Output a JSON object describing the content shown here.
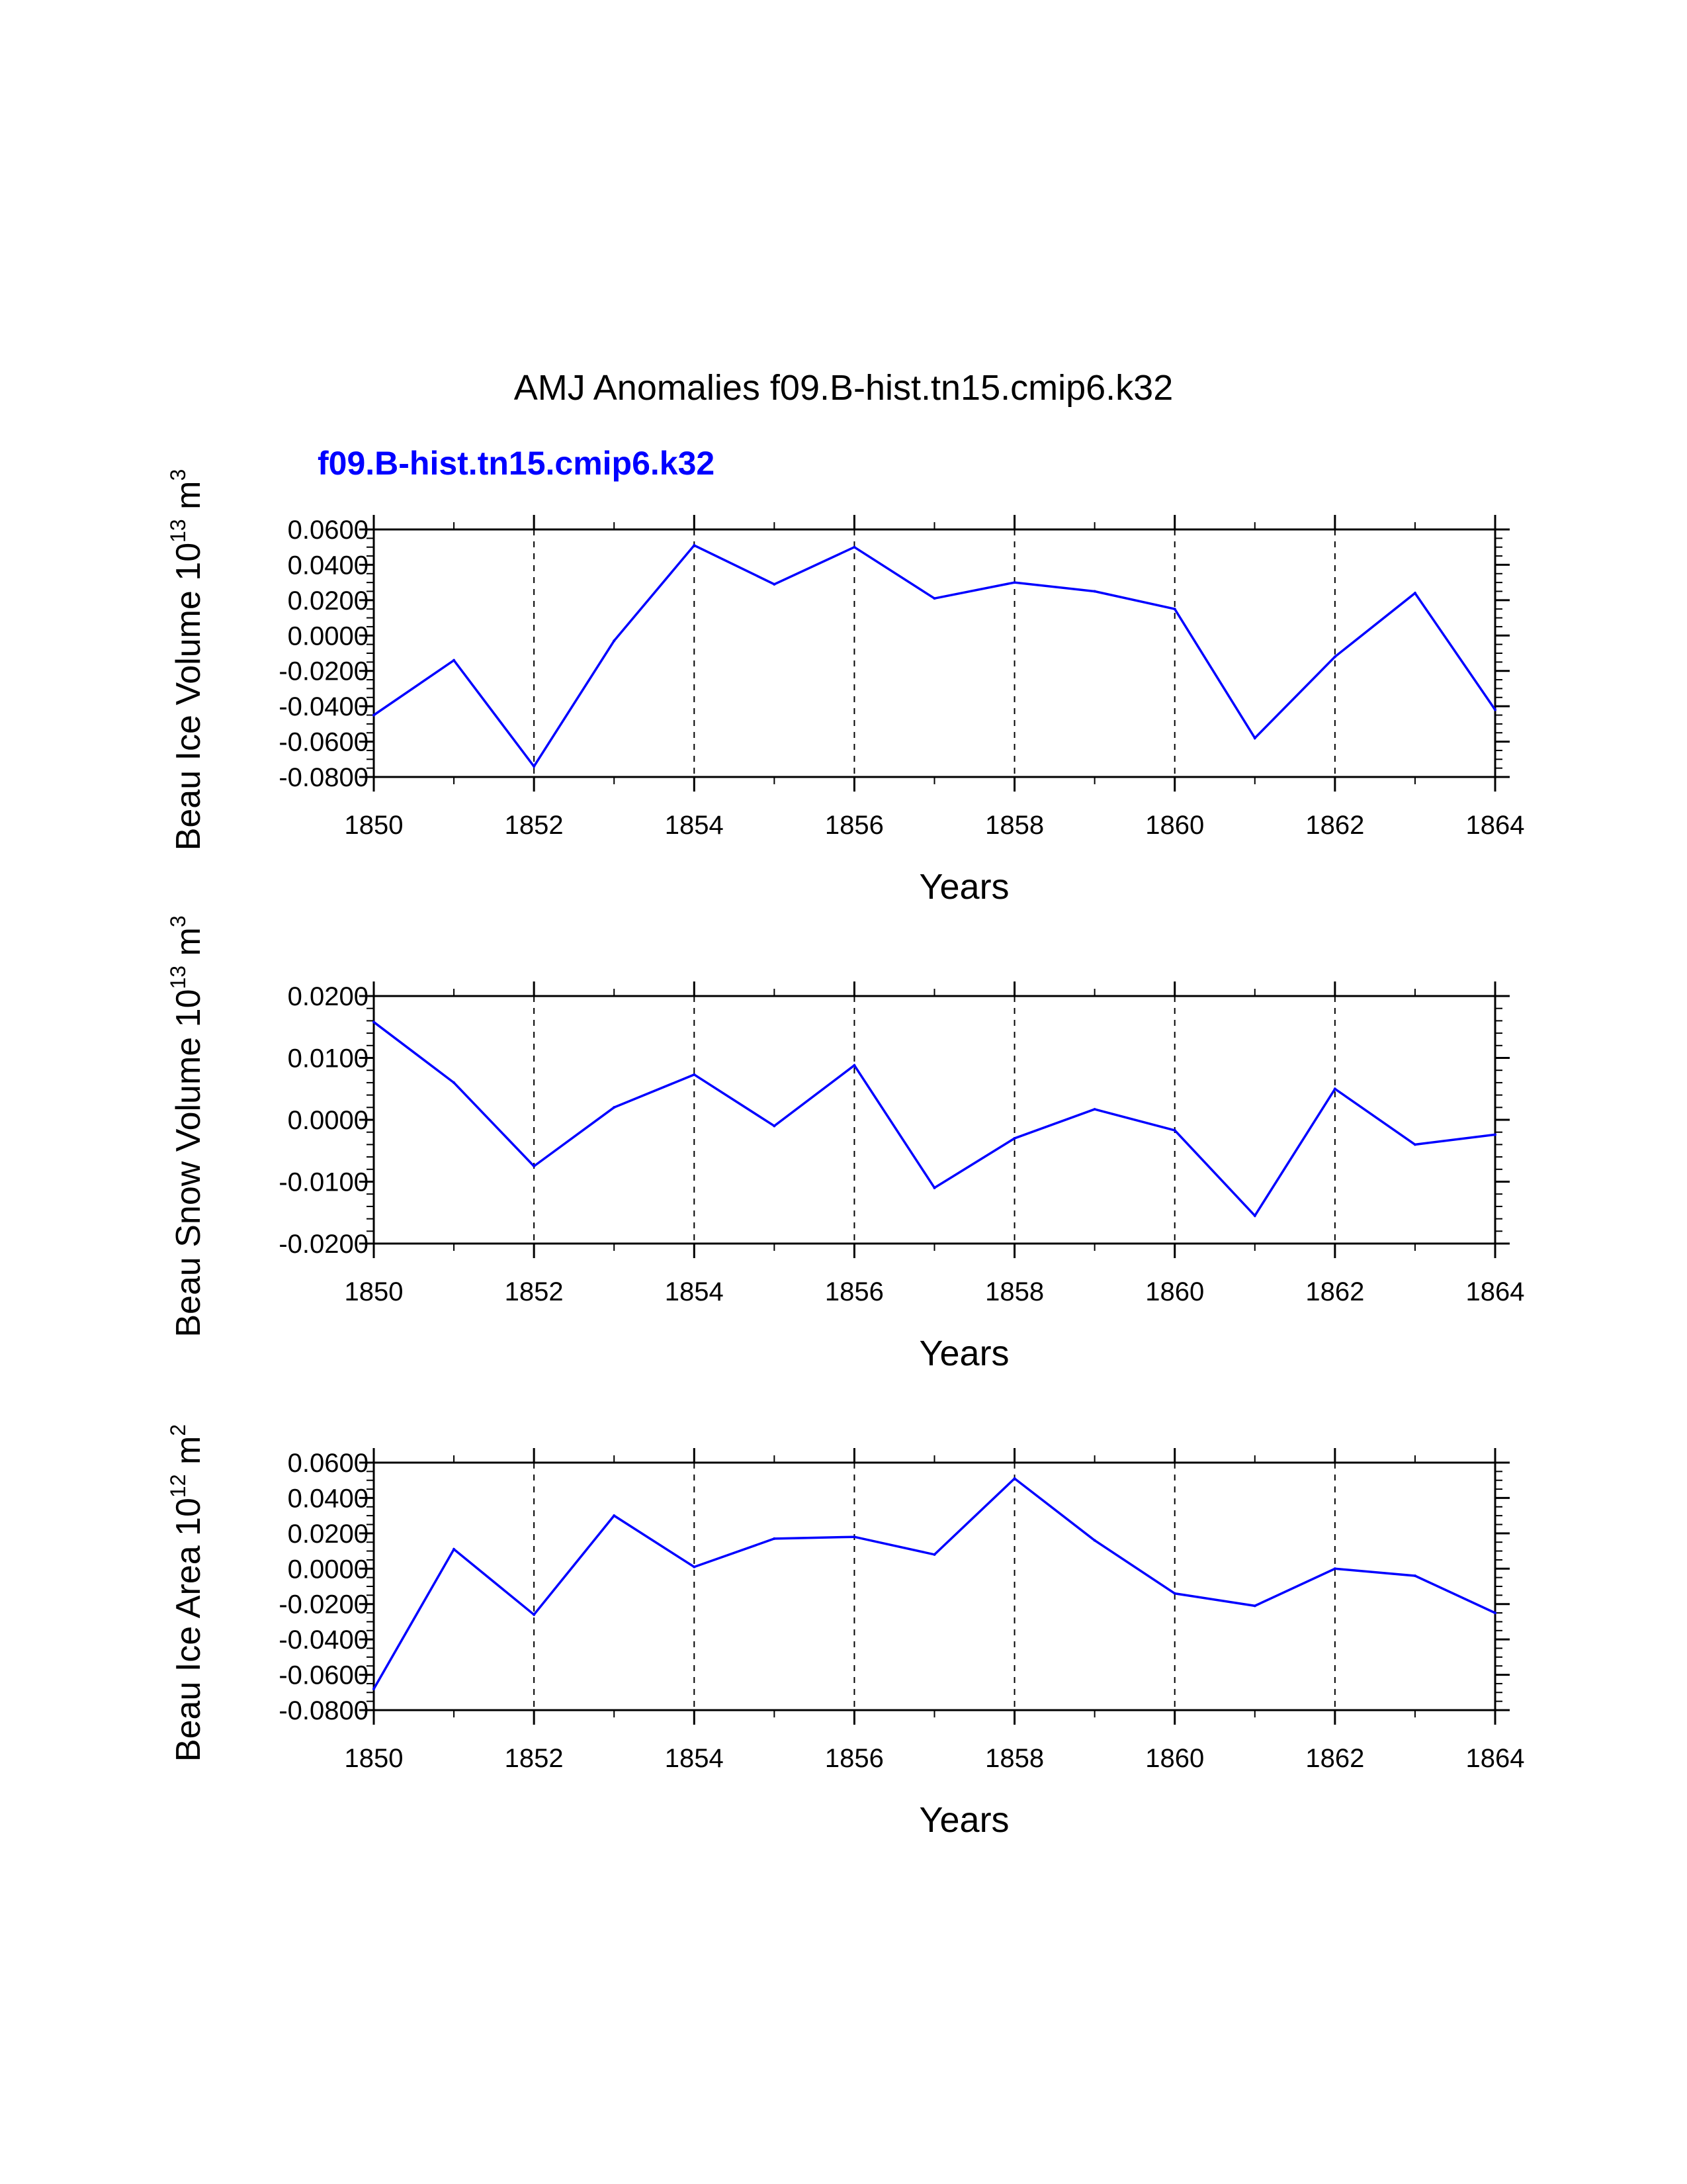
{
  "page": {
    "title": "AMJ Anomalies f09.B-hist.tn15.cmip6.k32",
    "subtitle": "f09.B-hist.tn15.cmip6.k32"
  },
  "colors": {
    "series": "#0000ff",
    "axes": "#000000",
    "subtitle": "#0000ff"
  },
  "chart_data": [
    {
      "type": "line",
      "name": "ice-volume",
      "ylabel": {
        "text": "Beau Ice Volume 10",
        "exp": "13",
        "unit": " m",
        "unit_exp": "3"
      },
      "xlabel": "Years",
      "xlim": [
        1850,
        1864
      ],
      "ylim": [
        -0.08,
        0.06
      ],
      "xticks": [
        1850,
        1852,
        1854,
        1856,
        1858,
        1860,
        1862,
        1864
      ],
      "xtick_labels": [
        "1850",
        "1852",
        "1854",
        "1856",
        "1858",
        "1860",
        "1862",
        "1864"
      ],
      "yticks": [
        0.06,
        0.04,
        0.02,
        0.0,
        -0.02,
        -0.04,
        -0.06,
        -0.08
      ],
      "ytick_labels": [
        "0.0600",
        "0.0400",
        "0.0200",
        "0.0000",
        "-0.0200",
        "-0.0400",
        "-0.0600",
        "-0.0800"
      ],
      "ygrid_minor": 0.005,
      "xgrid_dashed": [
        1852,
        1854,
        1856,
        1858,
        1860,
        1862
      ],
      "x": [
        1850,
        1851,
        1852,
        1853,
        1854,
        1855,
        1856,
        1857,
        1858,
        1859,
        1860,
        1861,
        1862,
        1863,
        1864
      ],
      "values": [
        -0.045,
        -0.014,
        -0.074,
        -0.003,
        0.051,
        0.029,
        0.05,
        0.021,
        0.03,
        0.025,
        0.015,
        -0.058,
        -0.012,
        0.024,
        -0.042
      ]
    },
    {
      "type": "line",
      "name": "snow-volume",
      "ylabel": {
        "text": "Beau Snow Volume 10",
        "exp": "13",
        "unit": " m",
        "unit_exp": "3"
      },
      "xlabel": "Years",
      "xlim": [
        1850,
        1864
      ],
      "ylim": [
        -0.02,
        0.02
      ],
      "xticks": [
        1850,
        1852,
        1854,
        1856,
        1858,
        1860,
        1862,
        1864
      ],
      "xtick_labels": [
        "1850",
        "1852",
        "1854",
        "1856",
        "1858",
        "1860",
        "1862",
        "1864"
      ],
      "yticks": [
        0.02,
        0.01,
        0.0,
        -0.01,
        -0.02
      ],
      "ytick_labels": [
        "0.0200",
        "0.0100",
        "0.0000",
        "-0.0100",
        "-0.0200"
      ],
      "ygrid_minor": 0.002,
      "xgrid_dashed": [
        1852,
        1854,
        1856,
        1858,
        1860,
        1862
      ],
      "x": [
        1850,
        1851,
        1852,
        1853,
        1854,
        1855,
        1856,
        1857,
        1858,
        1859,
        1860,
        1861,
        1862,
        1863,
        1864
      ],
      "values": [
        0.0158,
        0.006,
        -0.0075,
        0.002,
        0.0073,
        -0.001,
        0.0088,
        -0.011,
        -0.003,
        0.0017,
        -0.0017,
        -0.0155,
        0.005,
        -0.004,
        -0.0024
      ]
    },
    {
      "type": "line",
      "name": "ice-area",
      "ylabel": {
        "text": "Beau Ice Area 10",
        "exp": "12",
        "unit": " m",
        "unit_exp": "2"
      },
      "xlabel": "Years",
      "xlim": [
        1850,
        1864
      ],
      "ylim": [
        -0.08,
        0.06
      ],
      "xticks": [
        1850,
        1852,
        1854,
        1856,
        1858,
        1860,
        1862,
        1864
      ],
      "xtick_labels": [
        "1850",
        "1852",
        "1854",
        "1856",
        "1858",
        "1860",
        "1862",
        "1864"
      ],
      "yticks": [
        0.06,
        0.04,
        0.02,
        0.0,
        -0.02,
        -0.04,
        -0.06,
        -0.08
      ],
      "ytick_labels": [
        "0.0600",
        "0.0400",
        "0.0200",
        "0.0000",
        "-0.0200",
        "-0.0400",
        "-0.0600",
        "-0.0800"
      ],
      "ygrid_minor": 0.005,
      "xgrid_dashed": [
        1852,
        1854,
        1856,
        1858,
        1860,
        1862
      ],
      "x": [
        1850,
        1851,
        1852,
        1853,
        1854,
        1855,
        1856,
        1857,
        1858,
        1859,
        1860,
        1861,
        1862,
        1863,
        1864
      ],
      "values": [
        -0.068,
        0.011,
        -0.026,
        0.03,
        0.001,
        0.017,
        0.018,
        0.008,
        0.051,
        0.016,
        -0.014,
        -0.021,
        0.0,
        -0.004,
        -0.025
      ]
    }
  ]
}
